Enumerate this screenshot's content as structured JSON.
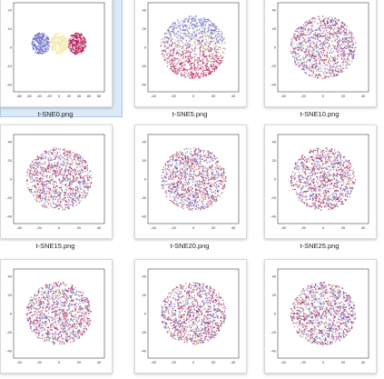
{
  "files": [
    {
      "name": "t-SNE0.png",
      "selected": true,
      "mode": "clusters",
      "yticks": [
        "20",
        "10",
        "0",
        "-10",
        "-20"
      ],
      "xticks": [
        "-80",
        "-60",
        "-40",
        "-20",
        "0",
        "20",
        "40",
        "60",
        "80"
      ]
    },
    {
      "name": "t-SNE5.png",
      "selected": false,
      "mode": "split",
      "yticks": [
        "40",
        "20",
        "0",
        "-20",
        "-40"
      ],
      "xticks": [
        "-40",
        "-20",
        "0",
        "20",
        "40"
      ]
    },
    {
      "name": "t-SNE10.png",
      "selected": false,
      "mode": "mixed",
      "yticks": [
        "40",
        "20",
        "0",
        "-20",
        "-40"
      ],
      "xticks": [
        "-40",
        "-20",
        "0",
        "20",
        "40"
      ]
    },
    {
      "name": "t-SNE15.png",
      "selected": false,
      "mode": "mixed",
      "yticks": [
        "40",
        "20",
        "0",
        "-20",
        "-40"
      ],
      "xticks": [
        "-40",
        "-20",
        "0",
        "20",
        "40"
      ]
    },
    {
      "name": "t-SNE20.png",
      "selected": false,
      "mode": "mixed",
      "yticks": [
        "40",
        "20",
        "0",
        "-20",
        "-40"
      ],
      "xticks": [
        "-40",
        "-20",
        "0",
        "20",
        "40"
      ]
    },
    {
      "name": "t-SNE25.png",
      "selected": false,
      "mode": "mixed",
      "yticks": [
        "40",
        "20",
        "0",
        "-20",
        "-40"
      ],
      "xticks": [
        "-40",
        "-20",
        "0",
        "20",
        "40"
      ]
    },
    {
      "name": "",
      "selected": false,
      "mode": "mixed",
      "yticks": [
        "40",
        "20",
        "0",
        "-20",
        "-40"
      ],
      "xticks": [
        "-40",
        "-20",
        "0",
        "20",
        "40"
      ]
    },
    {
      "name": "",
      "selected": false,
      "mode": "mixed",
      "yticks": [
        "40",
        "20",
        "0",
        "-20",
        "-40"
      ],
      "xticks": [
        "-40",
        "-20",
        "0",
        "20",
        "40"
      ]
    },
    {
      "name": "",
      "selected": false,
      "mode": "mixed",
      "yticks": [
        "40",
        "20",
        "0",
        "-20",
        "-40"
      ],
      "xticks": [
        "-40",
        "-20",
        "0",
        "20",
        "40"
      ]
    }
  ],
  "colors": {
    "selection_bg": "#dbe9f8",
    "class_blue": "#6a6fc4",
    "class_yellow": "#f2e7a6",
    "class_red": "#b0174f"
  }
}
